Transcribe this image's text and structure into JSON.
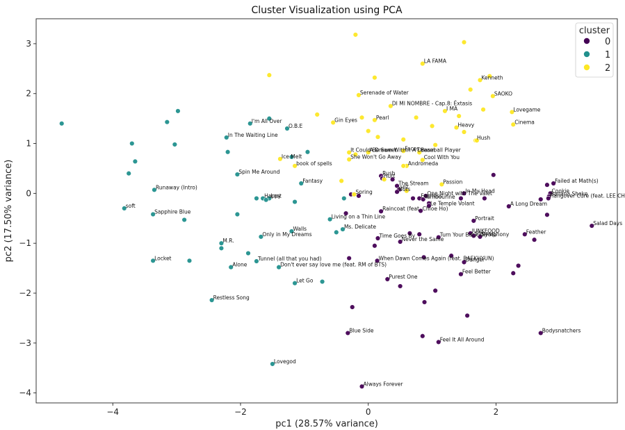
{
  "chart_data": {
    "type": "scatter",
    "title": "Cluster Visualization using PCA",
    "xlabel": "pc1 (28.57% variance)",
    "ylabel": "pc2 (17.50% variance)",
    "xlim": [
      -5.2,
      3.9
    ],
    "ylim": [
      -4.2,
      3.5
    ],
    "xticks": [
      -4,
      -2,
      0,
      2
    ],
    "yticks": [
      -4,
      -3,
      -2,
      -1,
      0,
      1,
      2,
      3
    ],
    "grid": false,
    "legend": {
      "title": "cluster",
      "position": "top-right"
    },
    "series": [
      {
        "name": "0",
        "color": "#440154",
        "points": [
          {
            "x": 0.2,
            "y": 0.35,
            "label": "Rush"
          },
          {
            "x": 0.22,
            "y": 0.3,
            "label": "Hurt"
          },
          {
            "x": 0.38,
            "y": 0.28,
            "label": ""
          },
          {
            "x": 0.45,
            "y": 0.15,
            "label": "The Stream"
          },
          {
            "x": 0.48,
            "y": 0.07,
            "label": "HIT"
          },
          {
            "x": 0.45,
            "y": 0.03,
            "label": "Nuts"
          },
          {
            "x": 0.7,
            "y": -0.1,
            "label": ""
          },
          {
            "x": 0.8,
            "y": -0.1,
            "label": "Fearless"
          },
          {
            "x": 0.86,
            "y": -0.12,
            "label": "Tambourine"
          },
          {
            "x": 0.9,
            "y": -0.05,
            "label": "One Night with The Valet"
          },
          {
            "x": 0.95,
            "y": -0.2,
            "label": ""
          },
          {
            "x": 0.95,
            "y": -0.25,
            "label": "Le Temple Volant"
          },
          {
            "x": 0.82,
            "y": -0.35,
            "label": ""
          },
          {
            "x": 0.2,
            "y": -0.36,
            "label": "Raincoat (feat. Chloe Ho)"
          },
          {
            "x": -0.15,
            "y": -0.05,
            "label": ""
          },
          {
            "x": -0.27,
            "y": -0.02,
            "label": ""
          },
          {
            "x": -0.35,
            "y": -0.4,
            "label": ""
          },
          {
            "x": 1.5,
            "y": 0.0,
            "label": "In My Head"
          },
          {
            "x": 1.45,
            "y": -0.1,
            "label": ""
          },
          {
            "x": 1.82,
            "y": -0.1,
            "label": ""
          },
          {
            "x": 1.96,
            "y": 0.37,
            "label": ""
          },
          {
            "x": 1.65,
            "y": -0.55,
            "label": "Portrait"
          },
          {
            "x": 1.6,
            "y": -0.8,
            "label": "JUNKFOOD"
          },
          {
            "x": 1.65,
            "y": -0.85,
            "label": "Stars"
          },
          {
            "x": 1.75,
            "y": -0.87,
            "label": "Symphony"
          },
          {
            "x": 1.1,
            "y": -0.88,
            "label": "Turn Your Back On Me"
          },
          {
            "x": 0.8,
            "y": -0.82,
            "label": ""
          },
          {
            "x": 0.65,
            "y": -0.8,
            "label": ""
          },
          {
            "x": 0.15,
            "y": -0.9,
            "label": "Time Goes By"
          },
          {
            "x": 0.1,
            "y": -1.05,
            "label": ""
          },
          {
            "x": 0.5,
            "y": -0.97,
            "label": "Never the Same"
          },
          {
            "x": -0.3,
            "y": -1.3,
            "label": ""
          },
          {
            "x": 0.14,
            "y": -1.35,
            "label": "When Dawn Comes Again (feat. BAEKHYUN)"
          },
          {
            "x": 0.87,
            "y": -1.28,
            "label": ""
          },
          {
            "x": 1.3,
            "y": -1.25,
            "label": ""
          },
          {
            "x": 1.5,
            "y": -1.38,
            "label": "Danger"
          },
          {
            "x": 1.45,
            "y": -1.62,
            "label": "Feel Better"
          },
          {
            "x": 0.3,
            "y": -1.72,
            "label": "Purest One"
          },
          {
            "x": 0.5,
            "y": -1.86,
            "label": ""
          },
          {
            "x": 1.05,
            "y": -1.95,
            "label": ""
          },
          {
            "x": 0.88,
            "y": -2.18,
            "label": ""
          },
          {
            "x": -0.25,
            "y": -2.28,
            "label": ""
          },
          {
            "x": 1.55,
            "y": -2.45,
            "label": ""
          },
          {
            "x": -0.32,
            "y": -2.8,
            "label": "Blue Side"
          },
          {
            "x": 0.85,
            "y": -2.86,
            "label": ""
          },
          {
            "x": 1.1,
            "y": -2.98,
            "label": "Feel It All Around"
          },
          {
            "x": -0.1,
            "y": -3.87,
            "label": "Always Forever"
          },
          {
            "x": 2.8,
            "y": 0.17,
            "label": ""
          },
          {
            "x": 2.9,
            "y": 0.2,
            "label": "Failed at Math(s)"
          },
          {
            "x": 2.85,
            "y": 0.0,
            "label": "Cookie"
          },
          {
            "x": 2.83,
            "y": -0.06,
            "label": "Banana Shake"
          },
          {
            "x": 2.82,
            "y": -0.1,
            "label": "Hangover Cure (feat. LEE CHAN)"
          },
          {
            "x": 2.7,
            "y": -0.12,
            "label": ""
          },
          {
            "x": 2.2,
            "y": -0.26,
            "label": "A Long Dream"
          },
          {
            "x": 2.8,
            "y": -0.43,
            "label": ""
          },
          {
            "x": 2.45,
            "y": -0.82,
            "label": "Feather"
          },
          {
            "x": 2.6,
            "y": -0.93,
            "label": ""
          },
          {
            "x": 2.35,
            "y": -1.45,
            "label": ""
          },
          {
            "x": 2.27,
            "y": -1.6,
            "label": ""
          },
          {
            "x": 3.5,
            "y": -0.65,
            "label": "Salad Days"
          },
          {
            "x": 2.7,
            "y": -2.8,
            "label": "Bodysnatchers"
          }
        ]
      },
      {
        "name": "1",
        "color": "#21908d",
        "points": [
          {
            "x": -4.8,
            "y": 1.4,
            "label": ""
          },
          {
            "x": -3.75,
            "y": 0.4,
            "label": ""
          },
          {
            "x": -3.7,
            "y": 1.0,
            "label": ""
          },
          {
            "x": -3.65,
            "y": 0.64,
            "label": ""
          },
          {
            "x": -3.35,
            "y": 0.07,
            "label": "Runaway (Intro)"
          },
          {
            "x": -3.82,
            "y": -0.3,
            "label": "soft"
          },
          {
            "x": -3.37,
            "y": -0.42,
            "label": "Sapphire Blue"
          },
          {
            "x": -2.88,
            "y": -0.53,
            "label": ""
          },
          {
            "x": -3.37,
            "y": -1.35,
            "label": "Locket"
          },
          {
            "x": -2.8,
            "y": -1.35,
            "label": ""
          },
          {
            "x": -3.15,
            "y": 1.43,
            "label": ""
          },
          {
            "x": -2.98,
            "y": 1.65,
            "label": ""
          },
          {
            "x": -3.03,
            "y": 0.98,
            "label": ""
          },
          {
            "x": -2.22,
            "y": 1.12,
            "label": "In The Waiting Line"
          },
          {
            "x": -2.2,
            "y": 0.83,
            "label": ""
          },
          {
            "x": -2.05,
            "y": 0.38,
            "label": "Spin Me Around"
          },
          {
            "x": -1.55,
            "y": 1.5,
            "label": ""
          },
          {
            "x": -1.85,
            "y": 1.4,
            "label": "I'm All Over"
          },
          {
            "x": -1.27,
            "y": 1.3,
            "label": "O.B.E"
          },
          {
            "x": -1.2,
            "y": 0.73,
            "label": ""
          },
          {
            "x": -0.95,
            "y": 0.83,
            "label": ""
          },
          {
            "x": -1.05,
            "y": 0.2,
            "label": "Fantasy"
          },
          {
            "x": -1.75,
            "y": -0.1,
            "label": ""
          },
          {
            "x": -1.65,
            "y": -0.1,
            "label": "Happy"
          },
          {
            "x": -1.55,
            "y": -0.1,
            "label": "Lost"
          },
          {
            "x": -1.6,
            "y": -0.13,
            "label": ""
          },
          {
            "x": -1.15,
            "y": -0.17,
            "label": ""
          },
          {
            "x": -0.38,
            "y": -0.1,
            "label": ""
          },
          {
            "x": -2.05,
            "y": -0.42,
            "label": ""
          },
          {
            "x": -0.6,
            "y": -0.52,
            "label": "Living on a Thin Line"
          },
          {
            "x": -0.4,
            "y": -0.72,
            "label": "Ms. Delicate"
          },
          {
            "x": -0.5,
            "y": -0.78,
            "label": ""
          },
          {
            "x": -1.2,
            "y": -0.76,
            "label": "Walls"
          },
          {
            "x": -1.68,
            "y": -0.87,
            "label": "Only in My Dreams"
          },
          {
            "x": -2.3,
            "y": -1.0,
            "label": "M.R."
          },
          {
            "x": -2.3,
            "y": -1.1,
            "label": ""
          },
          {
            "x": -1.88,
            "y": -1.2,
            "label": ""
          },
          {
            "x": -1.75,
            "y": -1.36,
            "label": "Tunnel (all that you had)"
          },
          {
            "x": -2.15,
            "y": -1.48,
            "label": "Alone"
          },
          {
            "x": -1.4,
            "y": -1.48,
            "label": "Don't ever say love me (feat. RM of BTS)"
          },
          {
            "x": -1.15,
            "y": -1.8,
            "label": "Let Go"
          },
          {
            "x": -0.72,
            "y": -1.77,
            "label": ""
          },
          {
            "x": -2.45,
            "y": -2.14,
            "label": "Restless Song"
          },
          {
            "x": -1.5,
            "y": -3.42,
            "label": "Lovegod"
          }
        ]
      },
      {
        "name": "2",
        "color": "#fde725",
        "points": [
          {
            "x": -0.2,
            "y": 3.18,
            "label": ""
          },
          {
            "x": 1.5,
            "y": 3.03,
            "label": ""
          },
          {
            "x": -1.55,
            "y": 2.37,
            "label": ""
          },
          {
            "x": 0.1,
            "y": 2.32,
            "label": ""
          },
          {
            "x": 0.85,
            "y": 2.6,
            "label": "LA FAMA"
          },
          {
            "x": 1.75,
            "y": 2.27,
            "label": "Kenneth"
          },
          {
            "x": 1.6,
            "y": 2.08,
            "label": ""
          },
          {
            "x": 1.9,
            "y": 2.35,
            "label": ""
          },
          {
            "x": 1.95,
            "y": 1.95,
            "label": "SAOKO"
          },
          {
            "x": -0.15,
            "y": 1.97,
            "label": "Serenade of Water"
          },
          {
            "x": 0.35,
            "y": 1.75,
            "label": "DI MI NOMBRE - Cap.8: Éxtasis"
          },
          {
            "x": 1.2,
            "y": 1.65,
            "label": "I MA"
          },
          {
            "x": 1.8,
            "y": 1.68,
            "label": ""
          },
          {
            "x": 2.25,
            "y": 1.63,
            "label": "Lovegame"
          },
          {
            "x": -0.8,
            "y": 1.58,
            "label": ""
          },
          {
            "x": -0.55,
            "y": 1.42,
            "label": "Gin Eyes"
          },
          {
            "x": -0.1,
            "y": 1.52,
            "label": ""
          },
          {
            "x": 0.1,
            "y": 1.47,
            "label": "Pearl"
          },
          {
            "x": 0.75,
            "y": 1.52,
            "label": ""
          },
          {
            "x": 1.42,
            "y": 1.55,
            "label": ""
          },
          {
            "x": 1.0,
            "y": 1.35,
            "label": ""
          },
          {
            "x": 1.38,
            "y": 1.32,
            "label": "Heavy"
          },
          {
            "x": 1.5,
            "y": 1.23,
            "label": ""
          },
          {
            "x": 2.27,
            "y": 1.38,
            "label": "Cinema"
          },
          {
            "x": 0.0,
            "y": 1.25,
            "label": ""
          },
          {
            "x": 0.15,
            "y": 1.13,
            "label": ""
          },
          {
            "x": 0.55,
            "y": 1.08,
            "label": ""
          },
          {
            "x": 1.68,
            "y": 1.06,
            "label": "Hush"
          },
          {
            "x": 1.7,
            "y": 1.06,
            "label": ""
          },
          {
            "x": 1.05,
            "y": 0.97,
            "label": ""
          },
          {
            "x": -0.3,
            "y": 0.82,
            "label": "It Could Be Sweet"
          },
          {
            "x": -0.2,
            "y": 0.78,
            "label": ""
          },
          {
            "x": 0.0,
            "y": 0.82,
            "label": "A Dream Within A Dream"
          },
          {
            "x": 0.55,
            "y": 0.85,
            "label": "Faces"
          },
          {
            "x": 0.8,
            "y": 0.82,
            "label": "Baseball Player"
          },
          {
            "x": -0.3,
            "y": 0.68,
            "label": "She Won't Go Away"
          },
          {
            "x": 0.85,
            "y": 0.67,
            "label": "Cool With You"
          },
          {
            "x": 0.6,
            "y": 0.55,
            "label": "Andromeda"
          },
          {
            "x": 0.55,
            "y": 0.55,
            "label": ""
          },
          {
            "x": -1.38,
            "y": 0.69,
            "label": "Ice Melt"
          },
          {
            "x": -1.15,
            "y": 0.55,
            "label": "book of spells"
          },
          {
            "x": -0.42,
            "y": 0.25,
            "label": ""
          },
          {
            "x": 0.25,
            "y": 0.28,
            "label": ""
          },
          {
            "x": 1.15,
            "y": 0.18,
            "label": "Passion"
          },
          {
            "x": -0.22,
            "y": -0.02,
            "label": "Spring"
          },
          {
            "x": 0.6,
            "y": 0.05,
            "label": ""
          }
        ]
      }
    ]
  }
}
